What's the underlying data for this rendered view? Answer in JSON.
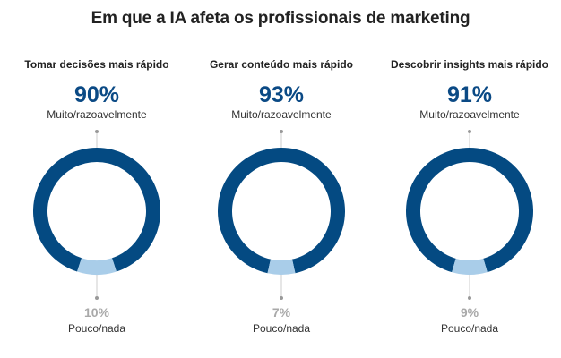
{
  "title": "Em que a IA afeta os profissionais de marketing",
  "colors": {
    "major": "#044a82",
    "minor": "#a9cde9",
    "major_text": "#0b4a85",
    "minor_text": "#a9a9a9",
    "connector": "#cccccc",
    "connector_dot": "#999999"
  },
  "panels": [
    {
      "title": "Tomar decisões mais rápido",
      "major_pct": "90%",
      "major_label": "Muito/razoavelmente",
      "minor_pct": "10%",
      "minor_label": "Pouco/nada"
    },
    {
      "title": "Gerar conteúdo mais rápido",
      "major_pct": "93%",
      "major_label": "Muito/razoavelmente",
      "minor_pct": "7%",
      "minor_label": "Pouco/nada"
    },
    {
      "title": "Descobrir insights mais rápido",
      "major_pct": "91%",
      "major_label": "Muito/razoavelmente",
      "minor_pct": "9%",
      "minor_label": "Pouco/nada"
    }
  ],
  "chart_data": {
    "type": "pie",
    "title": "Em que a IA afeta os profissionais de marketing",
    "variant": "donut",
    "categories": [
      "Muito/razoavelmente",
      "Pouco/nada"
    ],
    "charts": [
      {
        "title": "Tomar decisões mais rápido",
        "values": [
          90,
          10
        ]
      },
      {
        "title": "Gerar conteúdo mais rápido",
        "values": [
          93,
          7
        ]
      },
      {
        "title": "Descobrir insights mais rápido",
        "values": [
          91,
          9
        ]
      }
    ],
    "legend": "inline labels above (major) and below (minor) each donut"
  }
}
